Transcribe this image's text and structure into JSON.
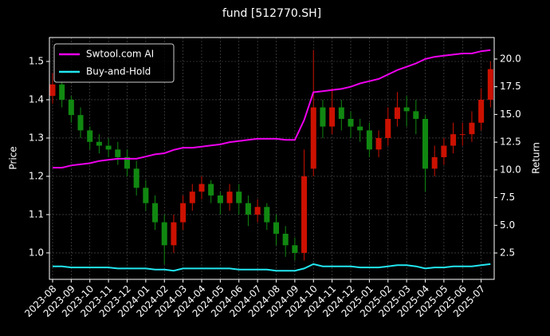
{
  "chart_data": {
    "type": "candlestick",
    "title": "fund [512770.SH]",
    "ylabel": "Price",
    "y2label": "Return",
    "x": [
      0,
      0.5,
      1,
      1.5,
      2,
      2.5,
      3,
      3.5,
      4,
      4.5,
      5,
      5.5,
      6,
      6.5,
      7,
      7.5,
      8,
      8.5,
      9,
      9.5,
      10,
      10.5,
      11,
      11.5,
      12,
      12.5,
      13,
      13.5,
      14,
      14.5,
      15,
      15.5,
      16,
      16.5,
      17,
      17.5,
      18,
      18.5,
      19,
      19.5,
      20,
      20.5,
      21,
      21.5,
      22,
      22.5,
      23,
      23.5
    ],
    "open": [
      1.41,
      1.44,
      1.4,
      1.36,
      1.32,
      1.29,
      1.28,
      1.27,
      1.25,
      1.22,
      1.17,
      1.13,
      1.08,
      1.02,
      1.08,
      1.13,
      1.16,
      1.18,
      1.15,
      1.13,
      1.16,
      1.13,
      1.1,
      1.12,
      1.08,
      1.05,
      1.02,
      1.0,
      1.22,
      1.38,
      1.33,
      1.38,
      1.35,
      1.33,
      1.32,
      1.27,
      1.3,
      1.35,
      1.38,
      1.37,
      1.35,
      1.22,
      1.25,
      1.28,
      1.31,
      1.31,
      1.34,
      1.4
    ],
    "high": [
      1.47,
      1.45,
      1.41,
      1.38,
      1.33,
      1.31,
      1.3,
      1.29,
      1.27,
      1.24,
      1.19,
      1.15,
      1.1,
      1.1,
      1.15,
      1.18,
      1.2,
      1.19,
      1.16,
      1.18,
      1.18,
      1.15,
      1.14,
      1.13,
      1.1,
      1.07,
      1.04,
      1.27,
      1.53,
      1.4,
      1.43,
      1.4,
      1.37,
      1.35,
      1.34,
      1.32,
      1.38,
      1.42,
      1.41,
      1.4,
      1.36,
      1.28,
      1.3,
      1.34,
      1.34,
      1.37,
      1.43,
      1.5
    ],
    "low": [
      1.39,
      1.38,
      1.34,
      1.3,
      1.27,
      1.26,
      1.25,
      1.23,
      1.2,
      1.15,
      1.11,
      1.06,
      0.97,
      1.0,
      1.06,
      1.11,
      1.14,
      1.13,
      1.1,
      1.11,
      1.1,
      1.07,
      1.08,
      1.06,
      1.02,
      0.99,
      0.98,
      0.98,
      1.2,
      1.3,
      1.31,
      1.32,
      1.3,
      1.29,
      1.25,
      1.25,
      1.28,
      1.33,
      1.33,
      1.31,
      1.16,
      1.2,
      1.23,
      1.26,
      1.28,
      1.29,
      1.32,
      1.38
    ],
    "close": [
      1.44,
      1.4,
      1.36,
      1.32,
      1.29,
      1.28,
      1.27,
      1.25,
      1.22,
      1.17,
      1.13,
      1.08,
      1.02,
      1.08,
      1.13,
      1.16,
      1.18,
      1.15,
      1.13,
      1.16,
      1.13,
      1.1,
      1.12,
      1.08,
      1.05,
      1.02,
      1.0,
      1.2,
      1.38,
      1.33,
      1.38,
      1.35,
      1.33,
      1.32,
      1.27,
      1.3,
      1.35,
      1.38,
      1.37,
      1.35,
      1.22,
      1.25,
      1.28,
      1.31,
      1.31,
      1.34,
      1.4,
      1.48
    ],
    "up_color": "#cc1100",
    "down_color": "#118811",
    "series": [
      {
        "name": "Swtool.com AI",
        "color": "#ee00ee",
        "axis": "y2",
        "values": [
          10.2,
          10.2,
          10.4,
          10.5,
          10.6,
          10.8,
          10.9,
          11.0,
          11.0,
          11.0,
          11.2,
          11.4,
          11.5,
          11.8,
          12.0,
          12.0,
          12.1,
          12.2,
          12.3,
          12.5,
          12.6,
          12.7,
          12.8,
          12.8,
          12.8,
          12.7,
          12.7,
          14.5,
          17.0,
          17.1,
          17.2,
          17.3,
          17.5,
          17.8,
          18.0,
          18.2,
          18.6,
          19.0,
          19.3,
          19.6,
          20.0,
          20.2,
          20.3,
          20.4,
          20.5,
          20.5,
          20.7,
          20.8
        ]
      },
      {
        "name": "Buy-and-Hold",
        "color": "#22e6f0",
        "axis": "y2",
        "values": [
          1.3,
          1.3,
          1.2,
          1.2,
          1.2,
          1.2,
          1.2,
          1.1,
          1.1,
          1.1,
          1.1,
          1.0,
          1.0,
          0.9,
          1.1,
          1.1,
          1.1,
          1.1,
          1.1,
          1.1,
          1.0,
          1.0,
          1.0,
          1.0,
          0.9,
          0.9,
          0.9,
          1.1,
          1.5,
          1.3,
          1.3,
          1.3,
          1.3,
          1.2,
          1.2,
          1.2,
          1.3,
          1.4,
          1.4,
          1.3,
          1.1,
          1.2,
          1.2,
          1.3,
          1.3,
          1.3,
          1.4,
          1.5
        ]
      }
    ],
    "xlim": [
      -0.17,
      23.7
    ],
    "xticks": [
      {
        "value": 0,
        "label": "2023-08"
      },
      {
        "value": 1,
        "label": "2023-09"
      },
      {
        "value": 2,
        "label": "2023-10"
      },
      {
        "value": 3,
        "label": "2023-11"
      },
      {
        "value": 4,
        "label": "2023-12"
      },
      {
        "value": 5,
        "label": "2024-01"
      },
      {
        "value": 6,
        "label": "2024-02"
      },
      {
        "value": 7,
        "label": "2024-03"
      },
      {
        "value": 8,
        "label": "2024-04"
      },
      {
        "value": 9,
        "label": "2024-05"
      },
      {
        "value": 10,
        "label": "2024-06"
      },
      {
        "value": 11,
        "label": "2024-07"
      },
      {
        "value": 12,
        "label": "2024-08"
      },
      {
        "value": 13,
        "label": "2024-09"
      },
      {
        "value": 14,
        "label": "2024-10"
      },
      {
        "value": 15,
        "label": "2024-11"
      },
      {
        "value": 16,
        "label": "2024-12"
      },
      {
        "value": 17,
        "label": "2025-01"
      },
      {
        "value": 18,
        "label": "2025-02"
      },
      {
        "value": 19,
        "label": "2025-03"
      },
      {
        "value": 20,
        "label": "2025-04"
      },
      {
        "value": 21,
        "label": "2025-05"
      },
      {
        "value": 22,
        "label": "2025-06"
      },
      {
        "value": 23,
        "label": "2025-07"
      }
    ],
    "ylim": [
      0.931,
      1.5625
    ],
    "yticks": [
      {
        "value": 1,
        "label": "1.0"
      },
      1.1,
      1.2,
      1.3,
      1.4,
      1.5
    ],
    "y2lim": [
      0.124,
      21.94
    ],
    "y2ticks": [
      2.5,
      {
        "value": 5,
        "label": "5.0"
      },
      7.5,
      {
        "value": 10,
        "label": "10.0"
      },
      12.5,
      {
        "value": 15,
        "label": "15.0"
      },
      17.5,
      {
        "value": 20,
        "label": "20.0"
      }
    ],
    "grid": true,
    "legend": "upper left"
  }
}
